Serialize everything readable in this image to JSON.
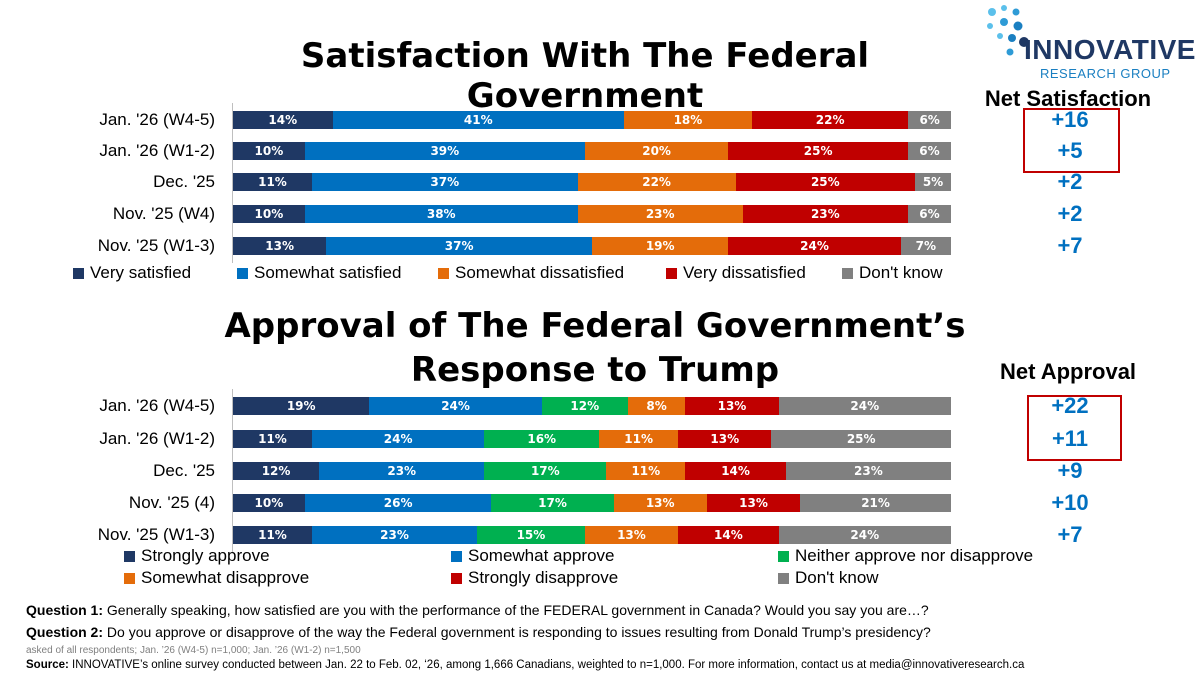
{
  "logo": {
    "name": "INNOVATIVE",
    "subname": "RESEARCH GROUP"
  },
  "chart_data": [
    {
      "type": "bar",
      "orientation": "horizontal-stacked-100",
      "title": "Satisfaction With The Federal Government",
      "categories": [
        "Jan. '26 (W4-5)",
        "Jan. '26 (W1-2)",
        "Dec. '25",
        "Nov. '25 (W4)",
        "Nov. '25 (W1-3)"
      ],
      "series": [
        {
          "name": "Very satisfied",
          "color": "#1f3864",
          "values": [
            14,
            10,
            11,
            10,
            13
          ]
        },
        {
          "name": "Somewhat satisfied",
          "color": "#0070c0",
          "values": [
            41,
            39,
            37,
            38,
            37
          ]
        },
        {
          "name": "Somewhat dissatisfied",
          "color": "#e46c0a",
          "values": [
            18,
            20,
            22,
            23,
            19
          ]
        },
        {
          "name": "Very dissatisfied",
          "color": "#c00000",
          "values": [
            22,
            25,
            25,
            23,
            24
          ]
        },
        {
          "name": "Don't know",
          "color": "#808080",
          "values": [
            6,
            6,
            5,
            6,
            7
          ]
        }
      ],
      "legend_position": "bottom",
      "net_header": "Net Satisfaction",
      "net_values": [
        "+16",
        "+5",
        "+2",
        "+2",
        "+7"
      ],
      "highlighted_net_rows": [
        0,
        1
      ]
    },
    {
      "type": "bar",
      "orientation": "horizontal-stacked-100",
      "title": "Approval of The Federal Government’s Response to Trump",
      "categories": [
        "Jan. '26 (W4-5)",
        "Jan. '26 (W1-2)",
        "Dec. '25",
        "Nov. '25 (4)",
        "Nov. '25 (W1-3)"
      ],
      "series": [
        {
          "name": "Strongly approve",
          "color": "#1f3864",
          "values": [
            19,
            11,
            12,
            10,
            11
          ]
        },
        {
          "name": "Somewhat approve",
          "color": "#0070c0",
          "values": [
            24,
            24,
            23,
            26,
            23
          ]
        },
        {
          "name": "Neither approve nor disapprove",
          "color": "#00b050",
          "values": [
            12,
            16,
            17,
            17,
            15
          ]
        },
        {
          "name": "Somewhat disapprove",
          "color": "#e46c0a",
          "values": [
            8,
            11,
            11,
            13,
            13
          ]
        },
        {
          "name": "Strongly disapprove",
          "color": "#c00000",
          "values": [
            13,
            13,
            14,
            13,
            14
          ]
        },
        {
          "name": "Don't know",
          "color": "#808080",
          "values": [
            24,
            25,
            23,
            21,
            24
          ]
        }
      ],
      "legend_position": "bottom",
      "net_header": "Net Approval",
      "net_values": [
        "+22",
        "+11",
        "+9",
        "+10",
        "+7"
      ],
      "highlighted_net_rows": [
        0,
        1
      ]
    }
  ],
  "footer": {
    "q1_label": "Question 1:",
    "q1_text": " Generally speaking, how satisfied are you with the performance of the FEDERAL government in Canada? Would you say you are…?",
    "q2_label": "Question 2:",
    "q2_text": " Do you approve or disapprove of the way the Federal government is responding to issues resulting from Donald Trump’s presidency?",
    "asked": "asked of all respondents; Jan. ’26 (W4-5) n=1,000; Jan. ’26 (W1-2) n=1,500",
    "source_label": "Source:",
    "source_text": " INNOVATIVE’s online survey conducted between Jan. 22 to Feb. 02, ‘26, among 1,666 Canadians, weighted to n=1,000. For more information, contact us at media@innovativeresearch.ca"
  }
}
